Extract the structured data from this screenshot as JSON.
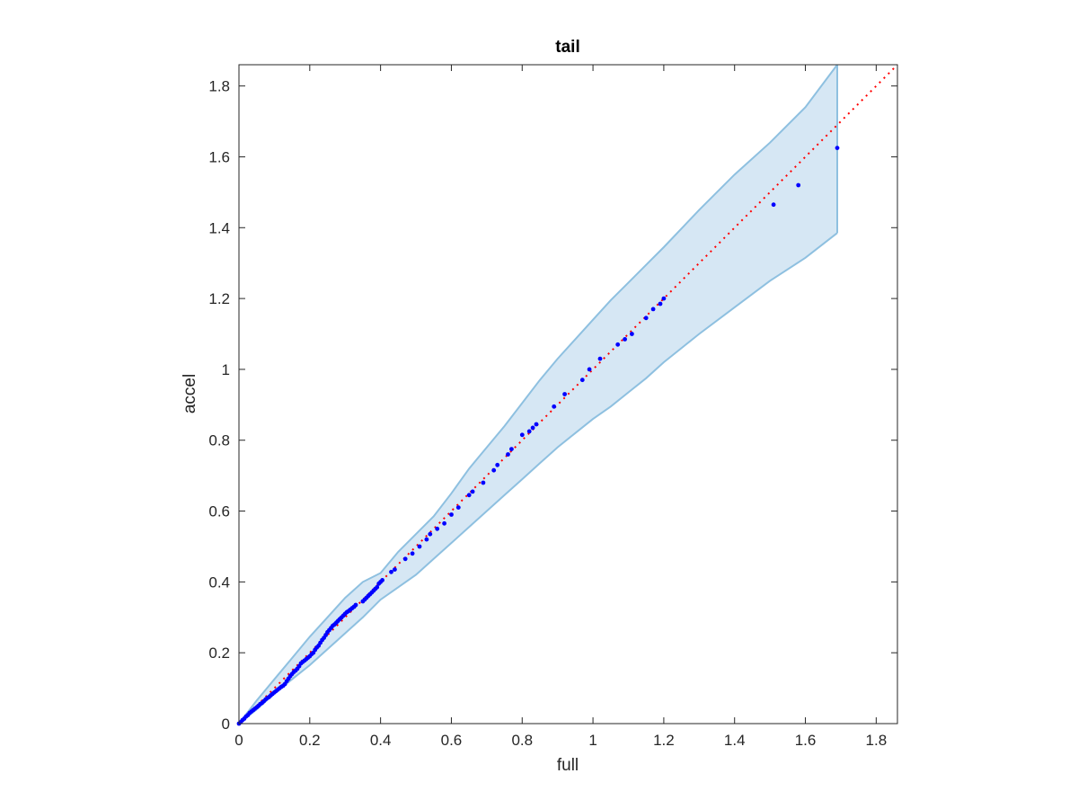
{
  "chart_data": {
    "type": "scatter",
    "title": "tail",
    "xlabel": "full",
    "ylabel": "accel",
    "xlim": [
      0,
      1.86
    ],
    "ylim": [
      0,
      1.86
    ],
    "xticks": [
      0,
      0.2,
      0.4,
      0.6,
      0.8,
      1,
      1.2,
      1.4,
      1.6,
      1.8
    ],
    "yticks": [
      0,
      0.2,
      0.4,
      0.6,
      0.8,
      1,
      1.2,
      1.4,
      1.6,
      1.8
    ],
    "xtick_labels": [
      "0",
      "0.2",
      "0.4",
      "0.6",
      "0.8",
      "1",
      "1.2",
      "1.4",
      "1.6",
      "1.8"
    ],
    "ytick_labels": [
      "0",
      "0.2",
      "0.4",
      "0.6",
      "0.8",
      "1",
      "1.2",
      "1.4",
      "1.6",
      "1.8"
    ],
    "grid": false,
    "legend": "none",
    "colors": {
      "points": "#0000ff",
      "reference_line": "#ff0000",
      "band_fill": "#d6e7f4",
      "band_edge": "#8ec0e0",
      "axes": "#262626"
    },
    "reference_line": {
      "style": "dotted",
      "x": [
        0,
        1.86
      ],
      "y": [
        0,
        1.86
      ]
    },
    "confidence_band": {
      "x": [
        0,
        0.05,
        0.1,
        0.15,
        0.2,
        0.25,
        0.3,
        0.35,
        0.4,
        0.45,
        0.5,
        0.55,
        0.6,
        0.65,
        0.7,
        0.75,
        0.8,
        0.85,
        0.9,
        0.95,
        1.0,
        1.05,
        1.1,
        1.15,
        1.2,
        1.3,
        1.4,
        1.5,
        1.6,
        1.69
      ],
      "upper": [
        0.0,
        0.065,
        0.125,
        0.185,
        0.245,
        0.3,
        0.355,
        0.4,
        0.425,
        0.485,
        0.535,
        0.585,
        0.65,
        0.72,
        0.78,
        0.84,
        0.905,
        0.97,
        1.03,
        1.085,
        1.14,
        1.195,
        1.245,
        1.295,
        1.345,
        1.45,
        1.55,
        1.64,
        1.74,
        1.86
      ],
      "lower": [
        0.0,
        0.04,
        0.085,
        0.125,
        0.165,
        0.21,
        0.255,
        0.3,
        0.35,
        0.385,
        0.42,
        0.465,
        0.51,
        0.555,
        0.6,
        0.645,
        0.69,
        0.735,
        0.78,
        0.82,
        0.86,
        0.895,
        0.935,
        0.975,
        1.02,
        1.1,
        1.175,
        1.25,
        1.315,
        1.385
      ]
    },
    "series": [
      {
        "x": [
          0.0,
          0.005,
          0.01,
          0.015,
          0.02,
          0.025,
          0.03,
          0.035,
          0.04,
          0.045,
          0.05,
          0.055,
          0.06,
          0.065,
          0.07,
          0.075,
          0.08,
          0.085,
          0.09,
          0.095,
          0.1,
          0.105,
          0.11,
          0.115,
          0.12,
          0.125,
          0.13,
          0.135,
          0.14,
          0.145,
          0.15,
          0.155,
          0.16,
          0.165,
          0.17,
          0.175,
          0.18,
          0.185,
          0.19,
          0.195,
          0.2,
          0.205,
          0.21,
          0.215,
          0.22,
          0.225,
          0.23,
          0.235,
          0.24,
          0.245,
          0.25,
          0.255,
          0.26,
          0.265,
          0.27,
          0.275,
          0.28,
          0.285,
          0.29,
          0.295,
          0.3,
          0.305,
          0.31,
          0.315,
          0.32,
          0.325,
          0.33,
          0.35,
          0.355,
          0.36,
          0.365,
          0.37,
          0.375,
          0.38,
          0.385,
          0.39,
          0.395,
          0.4,
          0.405,
          0.43,
          0.44,
          0.47,
          0.49,
          0.51,
          0.53,
          0.54,
          0.56,
          0.58,
          0.6,
          0.62,
          0.65,
          0.66,
          0.69,
          0.72,
          0.73,
          0.76,
          0.77,
          0.8,
          0.82,
          0.83,
          0.84,
          0.89,
          0.92,
          0.97,
          0.99,
          1.02,
          1.07,
          1.09,
          1.11,
          1.15,
          1.17,
          1.19,
          1.2,
          1.51,
          1.58,
          1.69
        ],
        "y": [
          0.0,
          0.004,
          0.01,
          0.014,
          0.02,
          0.024,
          0.03,
          0.034,
          0.038,
          0.042,
          0.046,
          0.05,
          0.055,
          0.058,
          0.063,
          0.068,
          0.072,
          0.075,
          0.08,
          0.084,
          0.088,
          0.092,
          0.096,
          0.1,
          0.104,
          0.107,
          0.112,
          0.12,
          0.127,
          0.134,
          0.14,
          0.146,
          0.15,
          0.155,
          0.162,
          0.17,
          0.174,
          0.178,
          0.182,
          0.186,
          0.19,
          0.196,
          0.2,
          0.208,
          0.215,
          0.22,
          0.228,
          0.236,
          0.242,
          0.25,
          0.258,
          0.264,
          0.27,
          0.276,
          0.28,
          0.285,
          0.29,
          0.295,
          0.3,
          0.305,
          0.31,
          0.315,
          0.318,
          0.322,
          0.326,
          0.33,
          0.335,
          0.345,
          0.35,
          0.355,
          0.36,
          0.365,
          0.37,
          0.375,
          0.38,
          0.385,
          0.395,
          0.4,
          0.405,
          0.428,
          0.435,
          0.465,
          0.48,
          0.5,
          0.52,
          0.535,
          0.55,
          0.565,
          0.59,
          0.61,
          0.645,
          0.655,
          0.68,
          0.715,
          0.73,
          0.76,
          0.775,
          0.815,
          0.825,
          0.835,
          0.845,
          0.895,
          0.93,
          0.97,
          1.0,
          1.03,
          1.07,
          1.085,
          1.1,
          1.145,
          1.17,
          1.185,
          1.2,
          1.465,
          1.52,
          1.625
        ]
      }
    ]
  }
}
